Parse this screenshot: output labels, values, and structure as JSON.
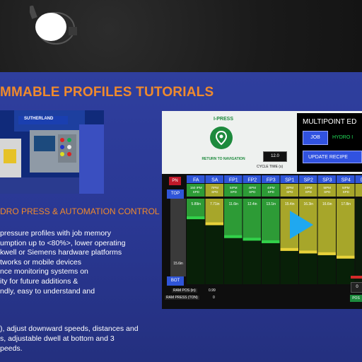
{
  "slide": {
    "title": "MMABLE PROFILES TUTORIALS",
    "subheading": "DRO PRESS & AUTOMATION CONTROL",
    "bullets": [
      "pressure profiles with job memory",
      "umption up to <80%>, lower operating",
      "kwell or Siemens hardware platforms",
      "tworks or mobile devices",
      "nce monitoring systems on",
      "ity for future additions &",
      "ndly, easy to understand and"
    ],
    "bullets_b": [
      "), adjust downward speeds, distances and",
      "s, adjustable dwell at  bottom and 3",
      "peeds."
    ],
    "photo_brand": "SUTHERLAND"
  },
  "hmi": {
    "ipress_label": "I-PRESS",
    "return_label": "RETURN TO NAVIGATION",
    "cycle_value": "12.0",
    "cycle_label": "CYCLE TIME (s)",
    "multipoint_title": "MULTIPOINT ED",
    "job_label": "JOB",
    "hydro_text": "HYDRO I",
    "update_label": "UPDATE RECIPE",
    "pn_label": "PN",
    "top_label": "TOP",
    "bot_label": "BOT",
    "left_value": "15.6in",
    "columns": [
      "FA",
      "SA",
      "FP1",
      "FP2",
      "FP3",
      "SP1",
      "SP2",
      "SP3",
      "SP4",
      "DW"
    ],
    "speeds": [
      "150 IPM\nSPD",
      "7IPM\nSPD",
      "5IPM\nSPD",
      "4IPM\nSPD",
      "4IPM\nSPD",
      "2IPM\nSPD",
      "2IPM\nSPD",
      "5IPM\nSPD",
      "5IPM\nSPD",
      "S"
    ],
    "bar_values": [
      "5.89in",
      "7.71in",
      "11.6in",
      "12.4in",
      "13.1in",
      "15.4in",
      "16.3in",
      "16.6in",
      "17.8in",
      ""
    ],
    "ram_pos_label": "RAM POS (in)",
    "ram_pos_value": "0.99",
    "ram_press_label": "RAM PRESS (TON)",
    "ram_press_value": "0",
    "right_value": "0",
    "pos_label": "POS"
  },
  "colors": {
    "slide_bg": "#2f3f9e",
    "accent_orange": "#f08a2c",
    "hmi_green": "#1d8a3d",
    "button_blue": "#3152e0",
    "bar_green": "#2d9b36",
    "bar_yellow": "#a7a62a",
    "play_blue": "#1fa8f0"
  },
  "icons": {
    "lamp": "ceiling-lamp-icon",
    "nav": "location-pin-icon",
    "play": "play-icon"
  }
}
